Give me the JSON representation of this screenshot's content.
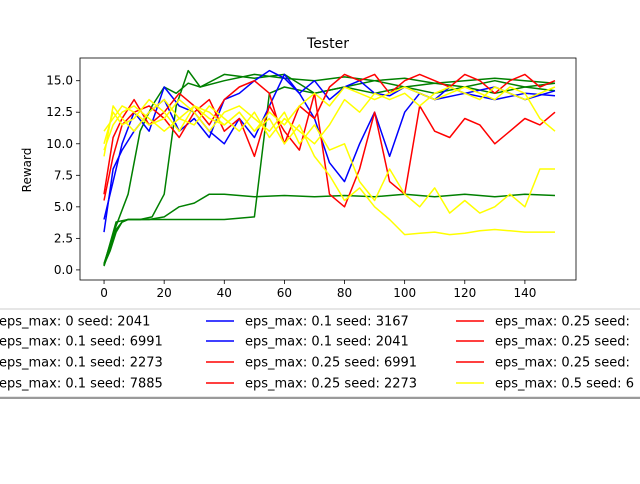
{
  "chart_data": {
    "type": "line",
    "title": "Tester",
    "xlabel": "",
    "ylabel": "Reward",
    "xlim": [
      -8,
      157
    ],
    "ylim": [
      -0.8,
      16.8
    ],
    "xticks": [
      0,
      20,
      40,
      60,
      80,
      100,
      120,
      140
    ],
    "yticks": [
      0.0,
      2.5,
      5.0,
      7.5,
      10.0,
      12.5,
      15.0
    ],
    "ytick_labels": [
      "0.0",
      "2.5",
      "5.0",
      "7.5",
      "10.0",
      "12.5",
      "15.0"
    ],
    "grid": false,
    "legend_position": "below the plot, 3 columns, partially cut off",
    "colors": {
      "eps_0": "#008000",
      "eps_0.1": "#0000ff",
      "eps_0.25": "#ff0000",
      "eps_0.5": "#ffff00"
    },
    "series": [
      {
        "name": "eps_max: 0 seed: 2041",
        "color": "#008000",
        "x": [
          0,
          2,
          4,
          6,
          8,
          10,
          14,
          20,
          30,
          40,
          50,
          55,
          60,
          70,
          80,
          90,
          100,
          110,
          120,
          130,
          140,
          150
        ],
        "y": [
          0.4,
          1.5,
          3.0,
          3.8,
          4.0,
          4.0,
          4.0,
          4.0,
          4.0,
          4.0,
          4.2,
          14.0,
          14.5,
          14.0,
          14.5,
          14.0,
          14.5,
          14.0,
          14.5,
          14.0,
          14.5,
          14.2
        ]
      },
      {
        "name": "eps_max: 0.1 seed: 6991",
        "color": "#008000",
        "x": [
          0,
          2,
          4,
          6,
          8,
          10,
          15,
          20,
          25,
          30,
          35,
          40,
          50,
          60,
          70,
          80,
          90,
          100,
          110,
          120,
          130,
          140,
          150
        ],
        "y": [
          0.3,
          1.8,
          3.2,
          3.8,
          4.0,
          4.0,
          4.0,
          4.2,
          5.0,
          5.3,
          6.0,
          6.0,
          5.8,
          5.9,
          5.8,
          5.9,
          5.8,
          6.0,
          5.8,
          6.0,
          5.8,
          6.0,
          5.9
        ]
      },
      {
        "name": "eps_max: 0.1 seed: 2273",
        "color": "#008000",
        "x": [
          0,
          4,
          8,
          12,
          16,
          20,
          24,
          28,
          32,
          40,
          50,
          60,
          70,
          80,
          90,
          100,
          110,
          120,
          130,
          140,
          150
        ],
        "y": [
          0.5,
          3.5,
          6.0,
          11.0,
          13.0,
          14.5,
          14.0,
          14.8,
          14.5,
          15.0,
          15.5,
          15.2,
          15.0,
          15.3,
          15.0,
          15.2,
          14.8,
          15.0,
          15.2,
          15.0,
          14.8
        ]
      },
      {
        "name": "eps_max: 0.1 seed: 7885",
        "color": "#008000",
        "x": [
          0,
          4,
          8,
          12,
          16,
          20,
          24,
          28,
          32,
          40,
          50,
          60,
          70,
          80,
          90,
          100,
          110,
          120,
          130,
          140,
          150
        ],
        "y": [
          0.4,
          3.8,
          4.0,
          4.0,
          4.2,
          6.0,
          13.0,
          15.8,
          14.5,
          15.5,
          15.2,
          15.5,
          14.0,
          14.5,
          15.0,
          14.5,
          14.8,
          14.5,
          15.0,
          14.5,
          14.8
        ]
      },
      {
        "name": "eps_max: 0.1 seed: 3167",
        "color": "#0000ff",
        "x": [
          0,
          3,
          6,
          10,
          15,
          20,
          25,
          30,
          35,
          40,
          45,
          50,
          55,
          60,
          65,
          70,
          75,
          80,
          85,
          90,
          95,
          100,
          105,
          110,
          115,
          120,
          130,
          140,
          150
        ],
        "y": [
          3.0,
          8.0,
          9.5,
          11.0,
          12.5,
          13.5,
          11.0,
          12.0,
          10.5,
          13.5,
          14.0,
          15.0,
          15.8,
          15.2,
          14.0,
          15.0,
          13.5,
          14.5,
          15.0,
          14.0,
          13.8,
          14.5,
          14.0,
          13.5,
          14.5,
          14.0,
          13.5,
          14.0,
          13.8
        ]
      },
      {
        "name": "eps_max: 0.1 seed: 2041",
        "color": "#0000ff",
        "x": [
          0,
          3,
          6,
          10,
          15,
          20,
          25,
          30,
          35,
          40,
          45,
          50,
          55,
          60,
          65,
          70,
          75,
          80,
          85,
          90,
          95,
          100,
          105,
          110,
          120,
          130,
          140,
          150
        ],
        "y": [
          4.0,
          7.0,
          10.0,
          12.5,
          11.0,
          14.5,
          13.0,
          12.5,
          11.0,
          10.0,
          12.0,
          10.5,
          13.0,
          15.5,
          14.0,
          12.0,
          8.5,
          7.0,
          10.0,
          12.5,
          9.0,
          12.5,
          14.0,
          13.5,
          14.0,
          14.5,
          13.5,
          14.2
        ]
      },
      {
        "name": "eps_max: 0.25 seed: 6991",
        "color": "#ff0000",
        "x": [
          0,
          3,
          6,
          10,
          15,
          20,
          25,
          30,
          35,
          40,
          45,
          50,
          55,
          60,
          65,
          70,
          75,
          80,
          85,
          90,
          95,
          100,
          105,
          110,
          115,
          120,
          125,
          130,
          135,
          140,
          145,
          150
        ],
        "y": [
          5.5,
          9.0,
          11.5,
          12.5,
          13.0,
          12.0,
          10.5,
          12.5,
          13.5,
          11.0,
          12.0,
          9.0,
          13.0,
          11.0,
          9.5,
          14.0,
          6.0,
          5.0,
          8.0,
          12.5,
          7.0,
          6.0,
          13.0,
          11.0,
          10.5,
          12.0,
          11.5,
          10.0,
          11.0,
          12.0,
          11.5,
          12.5
        ]
      },
      {
        "name": "eps_max: 0.25 seed: 2273",
        "color": "#ff0000",
        "x": [
          0,
          3,
          6,
          10,
          15,
          20,
          25,
          30,
          35,
          40,
          45,
          50,
          55,
          60,
          65,
          70,
          75,
          80,
          85,
          90,
          95,
          100,
          105,
          110,
          115,
          120,
          125,
          130,
          135,
          140,
          145,
          150
        ],
        "y": [
          6.0,
          10.5,
          12.0,
          13.5,
          11.5,
          12.5,
          14.0,
          13.0,
          11.5,
          13.5,
          14.5,
          15.0,
          14.0,
          10.0,
          13.0,
          12.0,
          14.5,
          15.5,
          15.0,
          15.5,
          14.0,
          15.0,
          15.5,
          15.0,
          14.5,
          15.5,
          15.0,
          14.0,
          15.0,
          15.5,
          14.5,
          15.0
        ]
      },
      {
        "name": "eps_max: 0.5 seed: 6",
        "color": "#ffff00",
        "x": [
          0,
          3,
          6,
          10,
          15,
          20,
          25,
          30,
          35,
          40,
          45,
          50,
          55,
          60,
          65,
          70,
          75,
          80,
          85,
          90,
          95,
          100,
          105,
          110,
          115,
          120,
          125,
          130,
          135,
          140,
          145,
          150
        ],
        "y": [
          10.0,
          12.5,
          11.5,
          12.0,
          13.5,
          12.5,
          11.0,
          13.0,
          12.5,
          11.5,
          12.5,
          11.0,
          12.0,
          10.0,
          11.5,
          9.0,
          7.5,
          5.5,
          6.5,
          5.0,
          4.0,
          2.8,
          2.9,
          3.0,
          2.8,
          2.9,
          3.1,
          3.2,
          3.1,
          3.0,
          3.0,
          3.0
        ]
      },
      {
        "name": "",
        "color": "#ffff00",
        "x": [
          0,
          3,
          6,
          10,
          15,
          20,
          25,
          30,
          35,
          40,
          45,
          50,
          55,
          60,
          65,
          70,
          75,
          80,
          85,
          90,
          95,
          100,
          105,
          110,
          115,
          120,
          125,
          130,
          135,
          140,
          145,
          150
        ],
        "y": [
          9.0,
          13.0,
          12.0,
          11.0,
          12.5,
          13.5,
          12.0,
          11.5,
          13.0,
          12.0,
          11.0,
          12.5,
          10.5,
          12.0,
          11.0,
          10.0,
          11.5,
          13.5,
          12.5,
          14.0,
          13.5,
          14.0,
          13.0,
          14.0,
          14.5,
          14.0,
          13.5,
          14.5,
          14.0,
          13.5,
          14.0,
          14.5
        ]
      },
      {
        "name": "",
        "color": "#ffff00",
        "x": [
          0,
          3,
          6,
          10,
          15,
          20,
          25,
          30,
          35,
          40,
          45,
          50,
          55,
          60,
          65,
          70,
          75,
          80,
          85,
          90,
          95,
          100,
          105,
          110,
          115,
          120,
          125,
          130,
          135,
          140,
          145,
          150
        ],
        "y": [
          11.0,
          12.0,
          13.0,
          12.5,
          11.5,
          12.0,
          13.5,
          12.5,
          11.0,
          12.5,
          13.0,
          12.0,
          11.0,
          12.5,
          10.0,
          11.5,
          9.5,
          10.0,
          7.0,
          5.5,
          8.0,
          6.0,
          5.0,
          6.5,
          4.5,
          5.5,
          4.5,
          5.0,
          6.0,
          5.0,
          8.0,
          8.0
        ]
      },
      {
        "name": "",
        "color": "#ffff00",
        "x": [
          0,
          3,
          6,
          10,
          15,
          20,
          25,
          30,
          35,
          40,
          45,
          50,
          55,
          60,
          65,
          70,
          75,
          80,
          85,
          90,
          95,
          100,
          105,
          110,
          115,
          120,
          125,
          130,
          135,
          140,
          145,
          150
        ],
        "y": [
          9.5,
          11.5,
          12.5,
          13.0,
          12.0,
          11.0,
          12.0,
          13.0,
          12.0,
          11.5,
          12.5,
          11.0,
          12.5,
          11.5,
          13.0,
          14.0,
          13.0,
          14.5,
          14.0,
          13.5,
          14.0,
          14.5,
          14.0,
          13.5,
          14.0,
          14.5,
          14.0,
          13.5,
          14.5,
          14.0,
          12.0,
          11.0
        ]
      }
    ],
    "legend": [
      {
        "label": "eps_max: 0 seed: 2041",
        "color": "#008000"
      },
      {
        "label": "eps_max: 0.1 seed: 6991",
        "color": "#008000"
      },
      {
        "label": "eps_max: 0.1 seed: 2273",
        "color": "#008000"
      },
      {
        "label": "eps_max: 0.1 seed: 7885",
        "color": "#008000"
      },
      {
        "label": "eps_max: 0.1 seed: 3167",
        "color": "#0000ff"
      },
      {
        "label": "eps_max: 0.1 seed: 2041",
        "color": "#0000ff"
      },
      {
        "label": "eps_max: 0.25 seed: 6991",
        "color": "#ff0000"
      },
      {
        "label": "eps_max: 0.25 seed: 2273",
        "color": "#ff0000"
      },
      {
        "label": "eps_max: 0.25 seed:",
        "color": "#ff0000"
      },
      {
        "label": "eps_max: 0.25 seed:",
        "color": "#ff0000"
      },
      {
        "label": "eps_max: 0.25 seed:",
        "color": "#ff0000"
      },
      {
        "label": "eps_max: 0.5 seed: 6",
        "color": "#ffff00"
      }
    ]
  }
}
